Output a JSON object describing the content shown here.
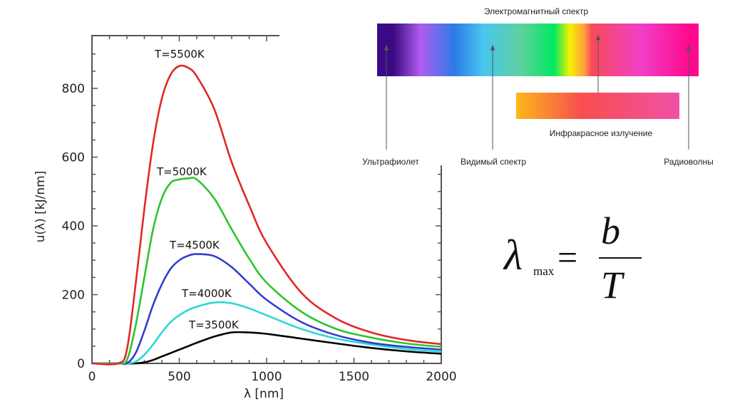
{
  "chart_data": {
    "type": "line",
    "title": "",
    "xlabel": "λ [nm]",
    "ylabel": "u(λ) [kJ/nm]",
    "xlim": [
      0,
      2000
    ],
    "ylim": [
      0,
      950
    ],
    "x_ticks": [
      0,
      500,
      1000,
      1500,
      2000
    ],
    "y_ticks": [
      0,
      200,
      400,
      600,
      800
    ],
    "grid": false,
    "x": [
      0,
      150,
      200,
      250,
      300,
      350,
      400,
      450,
      500,
      550,
      600,
      700,
      800,
      900,
      1000,
      1200,
      1400,
      1600,
      1800,
      2000
    ],
    "series": [
      {
        "name": "T=5500K",
        "color": "#e02828",
        "values": [
          0,
          0,
          40,
          230,
          450,
          640,
          770,
          840,
          865,
          860,
          835,
          740,
          585,
          460,
          350,
          205,
          130,
          90,
          68,
          56
        ]
      },
      {
        "name": "T=5000K",
        "color": "#2cc62c",
        "values": [
          0,
          0,
          10,
          110,
          250,
          390,
          480,
          525,
          535,
          538,
          535,
          480,
          390,
          305,
          235,
          150,
          100,
          75,
          58,
          48
        ]
      },
      {
        "name": "T=4500K",
        "color": "#2f3fd0",
        "values": [
          0,
          0,
          0,
          30,
          95,
          170,
          230,
          275,
          300,
          313,
          318,
          312,
          280,
          232,
          185,
          120,
          82,
          60,
          48,
          40
        ]
      },
      {
        "name": "T=4000K",
        "color": "#2fd6d6",
        "values": [
          0,
          0,
          0,
          5,
          25,
          55,
          90,
          120,
          140,
          155,
          165,
          177,
          175,
          160,
          140,
          100,
          72,
          55,
          42,
          34
        ]
      },
      {
        "name": "T=3500K",
        "color": "#000000",
        "values": [
          0,
          0,
          0,
          0,
          3,
          10,
          20,
          30,
          40,
          50,
          60,
          78,
          90,
          90,
          86,
          72,
          58,
          45,
          35,
          28
        ]
      }
    ]
  },
  "spectrum": {
    "title": "Электромагнитный спектр",
    "infrared_label": "Инфракрасное излучение",
    "ultraviolet_label": "Ультрафиолет",
    "visible_label": "Видимый спектр",
    "radio_label": "Радиоволны"
  },
  "formula": {
    "lambda": "λ",
    "subscript": "max",
    "equals": "=",
    "numerator": "b",
    "denominator": "T"
  }
}
